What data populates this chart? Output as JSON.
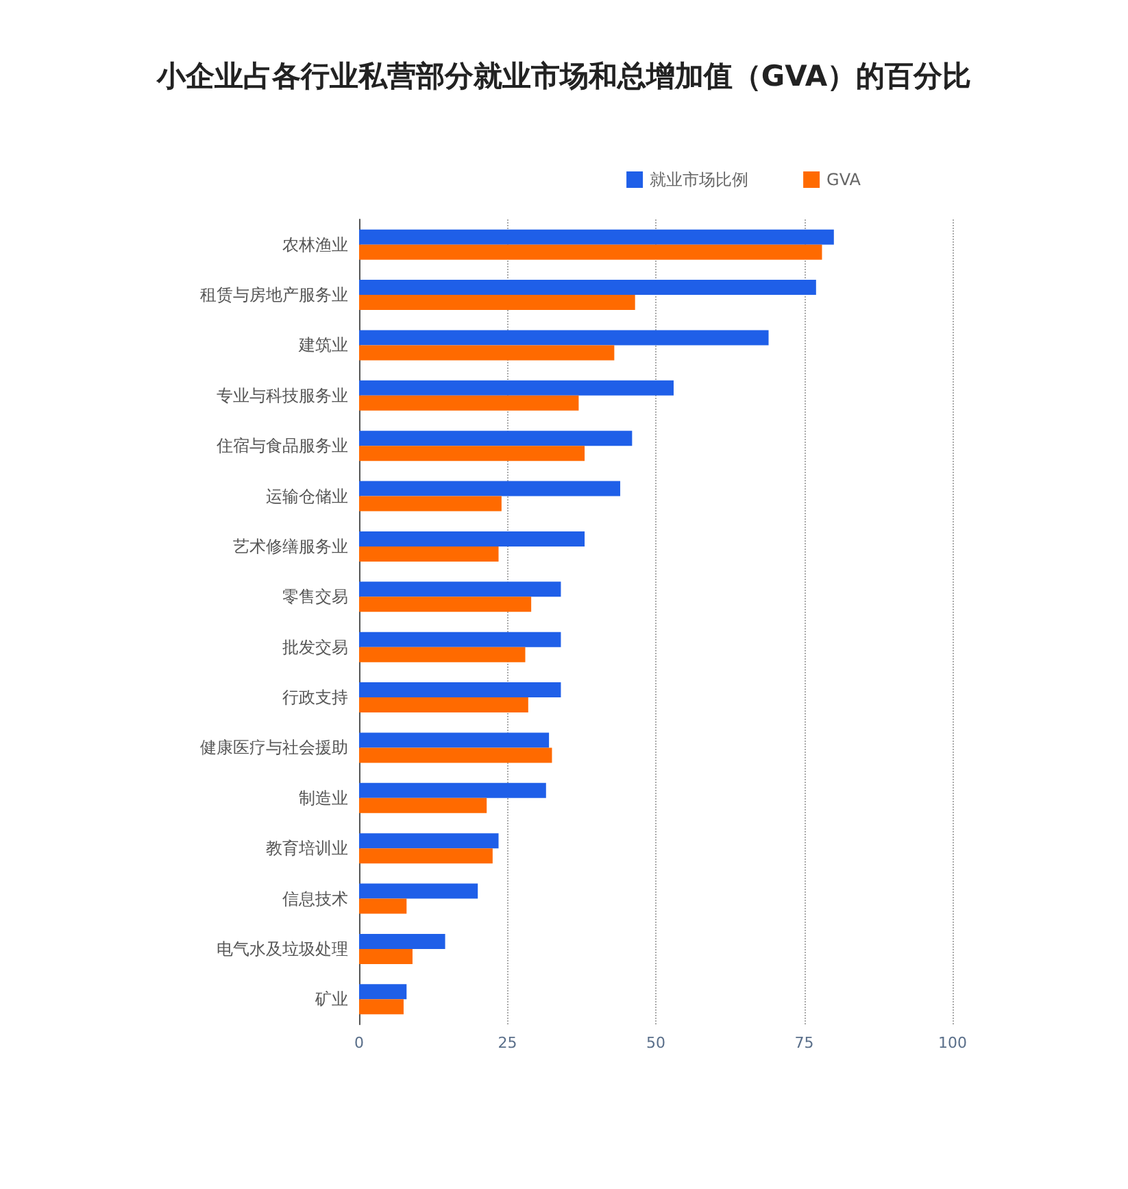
{
  "chart_data": {
    "type": "bar",
    "orientation": "horizontal",
    "title": "小企业占各行业私营部分就业市场和总增加值（GVA）的百分比",
    "categories": [
      "农林渔业",
      "租赁与房地产服务业",
      "建筑业",
      "专业与科技服务业",
      "住宿与食品服务业",
      "运输仓储业",
      "艺术修缮服务业",
      "零售交易",
      "批发交易",
      "行政支持",
      "健康医疗与社会援助",
      "制造业",
      "教育培训业",
      "信息技术",
      "电气水及垃圾处理",
      "矿业"
    ],
    "series": [
      {
        "name": "就业市场比例",
        "color": "#1f5fe8",
        "values": [
          80,
          77,
          69,
          53,
          46,
          44,
          38,
          34,
          34,
          34,
          32,
          31.5,
          23.5,
          20,
          14.5,
          8
        ]
      },
      {
        "name": "GVA",
        "color": "#ff6a00",
        "values": [
          78,
          46.5,
          43,
          37,
          38,
          24,
          23.5,
          29,
          28,
          28.5,
          32.5,
          21.5,
          22.5,
          8,
          9,
          7.5
        ]
      }
    ],
    "xlim": [
      0,
      100
    ],
    "xticks": [
      0,
      25,
      50,
      75,
      100
    ],
    "grid": "x",
    "legend": "top right"
  }
}
